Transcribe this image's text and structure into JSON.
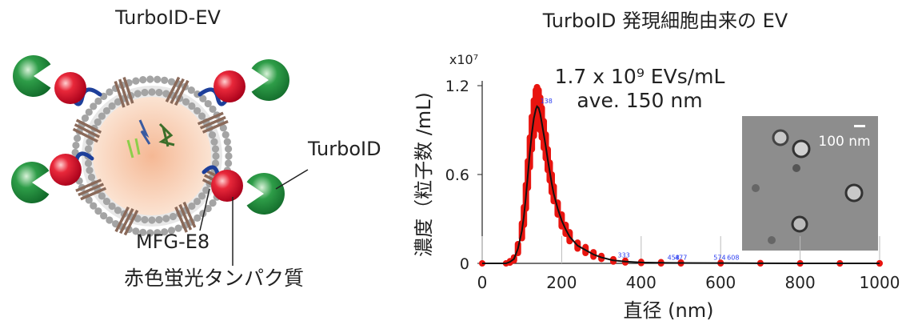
{
  "diagram": {
    "title": "TurboID-EV",
    "labels": {
      "turboid": "TurboID",
      "mfge8": "MFG-E8",
      "rfp": "赤色蛍光タンパク質"
    }
  },
  "chart_data": {
    "type": "line",
    "title": "TurboID 発現細胞由来の EV",
    "x_label": "直径 (nm)",
    "y_label": "濃度（粒子数 /mL)",
    "y_scale_label": "x10⁷",
    "annotations": [
      "1.7 x 10⁹ EVs/mL",
      "ave. 150 nm"
    ],
    "inset_scale_label": "100 nm",
    "x": [
      0,
      60,
      70,
      80,
      90,
      100,
      105,
      110,
      115,
      120,
      125,
      130,
      135,
      138,
      142,
      146,
      150,
      155,
      160,
      165,
      170,
      175,
      180,
      190,
      200,
      210,
      220,
      240,
      260,
      280,
      300,
      330,
      360,
      400,
      450,
      500,
      600,
      700,
      800,
      900,
      1000
    ],
    "series": [
      {
        "color": "#111111",
        "error_color": "#e8140f",
        "values": [
          0,
          0,
          0.01,
          0.03,
          0.1,
          0.22,
          0.32,
          0.45,
          0.6,
          0.75,
          0.88,
          0.98,
          1.04,
          1.06,
          1.05,
          1.01,
          0.95,
          0.87,
          0.79,
          0.7,
          0.62,
          0.54,
          0.47,
          0.37,
          0.29,
          0.23,
          0.18,
          0.12,
          0.09,
          0.06,
          0.04,
          0.02,
          0.012,
          0.006,
          0.004,
          0.003,
          0.002,
          0.001,
          0,
          0,
          0
        ],
        "errors": [
          0,
          0,
          0.005,
          0.01,
          0.03,
          0.05,
          0.06,
          0.08,
          0.09,
          0.1,
          0.11,
          0.12,
          0.13,
          0.13,
          0.12,
          0.11,
          0.1,
          0.09,
          0.08,
          0.07,
          0.06,
          0.06,
          0.05,
          0.04,
          0.04,
          0.03,
          0.03,
          0.02,
          0.02,
          0.015,
          0.01,
          0.008,
          0.006,
          0.004,
          0.004,
          0.003,
          0.002,
          0.001,
          0.001,
          0.001,
          0.001
        ]
      }
    ],
    "peak_labels": [
      138,
      333,
      458,
      477,
      574,
      608
    ],
    "xlim": [
      0,
      1000
    ],
    "ylim": [
      0,
      1.2
    ],
    "xticks": [
      0,
      200,
      400,
      600,
      800,
      1000
    ],
    "yticks": [
      0,
      0.6,
      1.2
    ]
  }
}
